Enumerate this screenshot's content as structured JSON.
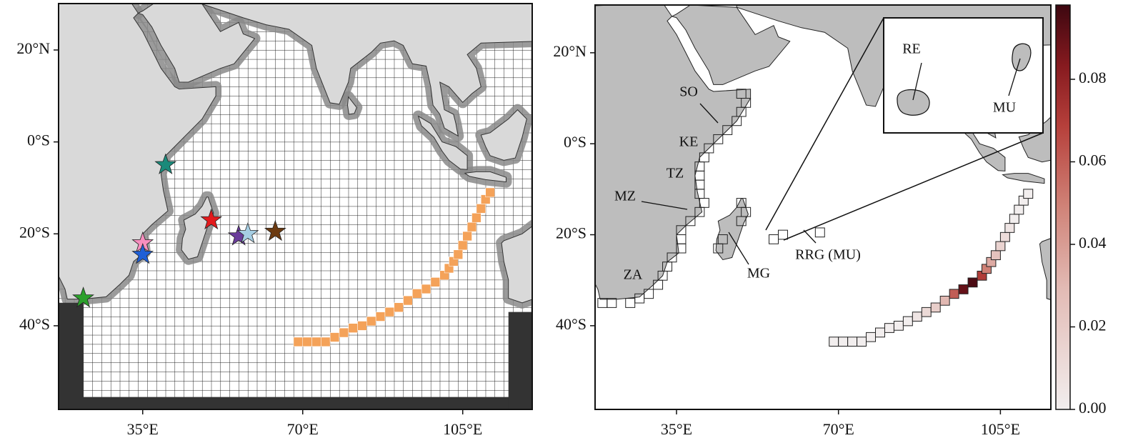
{
  "chart_data": [
    {
      "type": "map",
      "xlim": [
        16.6,
        120.2
      ],
      "ylim": [
        -58.2,
        30.1
      ],
      "xticks": [
        {
          "value": 35,
          "label": "35°E"
        },
        {
          "value": 70,
          "label": "70°E"
        },
        {
          "value": 105,
          "label": "105°E"
        }
      ],
      "yticks": [
        {
          "value": 20,
          "label": "20°N"
        },
        {
          "value": 0,
          "label": "0°S"
        },
        {
          "value": -20,
          "label": "20°S"
        },
        {
          "value": -40,
          "label": "40°S"
        }
      ],
      "markers": {
        "lon": [
          40,
          50,
          56,
          58,
          64,
          35,
          35,
          22
        ],
        "lat": [
          -5,
          -17,
          -20.5,
          -20,
          -19.5,
          -22,
          -24.5,
          -34
        ],
        "colors": [
          "#1a8a7a",
          "#e31a1c",
          "#6a3d9a",
          "#a6cee3",
          "#6b3a10",
          "#f78fbf",
          "#1f5fd6",
          "#2ca02c"
        ]
      },
      "track": {
        "color": "#f4a259",
        "lon": [
          69,
          71,
          73,
          75,
          77,
          79,
          81,
          83,
          85,
          87,
          89,
          91,
          93,
          95,
          97,
          99,
          101,
          102,
          103,
          104,
          105,
          106,
          107,
          108,
          109,
          110,
          111
        ],
        "lat": [
          -43.5,
          -43.5,
          -43.5,
          -43.5,
          -42.5,
          -41.5,
          -40.5,
          -40,
          -39,
          -38,
          -37,
          -36,
          -34.5,
          -33,
          -32,
          -30.5,
          -29,
          -27.5,
          -26,
          -24.5,
          -22.5,
          -20.5,
          -18.5,
          -16.5,
          -14.5,
          -12.5,
          -11
        ]
      }
    },
    {
      "type": "map",
      "xlim": [
        17.4,
        115.9
      ],
      "ylim": [
        -58.4,
        30.5
      ],
      "xticks": [
        {
          "value": 35,
          "label": "35°E"
        },
        {
          "value": 70,
          "label": "70°E"
        },
        {
          "value": 105,
          "label": "105°E"
        }
      ],
      "yticks": [
        {
          "value": 20,
          "label": "20°N"
        },
        {
          "value": 0,
          "label": "0°S"
        },
        {
          "value": -20,
          "label": "20°S"
        },
        {
          "value": -40,
          "label": "40°S"
        }
      ],
      "annotations": [
        "SO",
        "KE",
        "TZ",
        "MZ",
        "ZA",
        "MG",
        "RRG (MU)",
        "RE",
        "MU"
      ],
      "cells": {
        "lon": [
          69,
          71,
          73,
          75,
          77,
          79,
          81,
          83,
          85,
          87,
          89,
          91,
          93,
          95,
          97,
          99,
          101,
          102,
          103,
          104,
          105,
          106,
          107,
          108,
          109,
          110,
          111
        ],
        "lat": [
          -43.5,
          -43.5,
          -43.5,
          -43.5,
          -42.5,
          -41.5,
          -40.5,
          -40,
          -39,
          -38,
          -37,
          -36,
          -34.5,
          -33,
          -32,
          -30.5,
          -29,
          -27.5,
          -26,
          -24.5,
          -22.5,
          -20.5,
          -18.5,
          -16.5,
          -14.5,
          -12.5,
          -11
        ],
        "values": [
          0,
          0,
          0,
          0,
          0,
          0,
          0,
          0,
          0,
          0.005,
          0.012,
          0.018,
          0.03,
          0.06,
          0.09,
          0.095,
          0.07,
          0.05,
          0.035,
          0.025,
          0.015,
          0.01,
          0.005,
          0,
          0,
          0,
          0
        ]
      }
    },
    {
      "type": "colorbar",
      "ylim": [
        0,
        0.098
      ],
      "yticks": [
        {
          "value": 0,
          "label": "0.00"
        },
        0.02,
        0.04,
        0.06,
        0.08
      ]
    }
  ]
}
